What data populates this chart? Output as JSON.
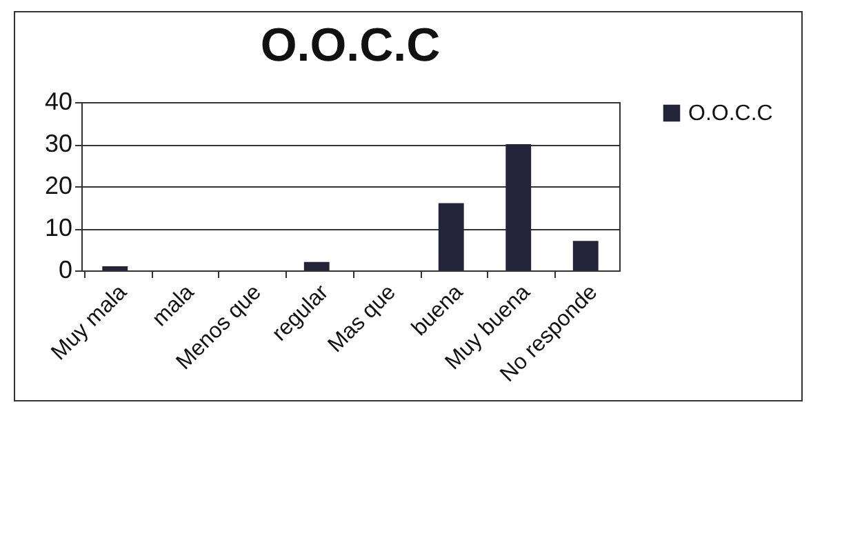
{
  "chart_data": {
    "type": "bar",
    "title": "O.O.C.C",
    "categories": [
      "Muy mala",
      "mala",
      "Menos que",
      "regular",
      "Mas que",
      "buena",
      "Muy buena",
      "No responde"
    ],
    "series": [
      {
        "name": "O.O.C.C",
        "color": "#23233a",
        "values": [
          1,
          0,
          0,
          2,
          0,
          16,
          30,
          7
        ]
      }
    ],
    "ylim": [
      0,
      40
    ],
    "yticks": [
      0,
      10,
      20,
      30,
      40
    ],
    "grid": "y",
    "legend": "right"
  }
}
